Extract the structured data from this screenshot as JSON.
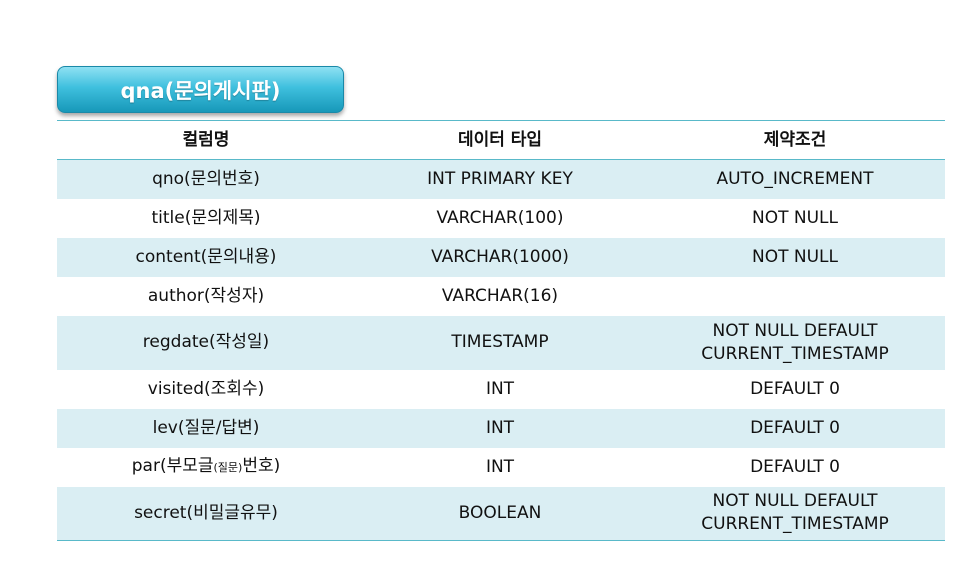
{
  "title": "qna(문의게시판)",
  "colors": {
    "accent": "#3fc0de",
    "row_band": "#daeef3",
    "rule": "#59b9c9"
  },
  "table": {
    "headers": [
      "컬럼명",
      "데이터 타입",
      "제약조건"
    ],
    "rows": [
      {
        "name": "qno(문의번호)",
        "type": "INT PRIMARY KEY",
        "constraint_lines": [
          "AUTO_INCREMENT"
        ]
      },
      {
        "name": "title(문의제목)",
        "type": "VARCHAR(100)",
        "constraint_lines": [
          "NOT NULL"
        ]
      },
      {
        "name": "content(문의내용)",
        "type": "VARCHAR(1000)",
        "constraint_lines": [
          "NOT NULL"
        ]
      },
      {
        "name": "author(작성자)",
        "type": "VARCHAR(16)",
        "constraint_lines": [
          ""
        ]
      },
      {
        "name": "regdate(작성일)",
        "type": "TIMESTAMP",
        "constraint_lines": [
          "NOT NULL DEFAULT",
          "CURRENT_TIMESTAMP"
        ]
      },
      {
        "name": "visited(조회수)",
        "type": "INT",
        "constraint_lines": [
          "DEFAULT 0"
        ]
      },
      {
        "name": "lev(질문/답변)",
        "type": "INT",
        "constraint_lines": [
          "DEFAULT 0"
        ]
      },
      {
        "name_parts": [
          "par(부모글",
          "(질문)",
          "번호)"
        ],
        "type": "INT",
        "constraint_lines": [
          "DEFAULT 0"
        ]
      },
      {
        "name": "secret(비밀글유무)",
        "type": "BOOLEAN",
        "constraint_lines": [
          "NOT NULL DEFAULT",
          "CURRENT_TIMESTAMP"
        ]
      }
    ]
  }
}
